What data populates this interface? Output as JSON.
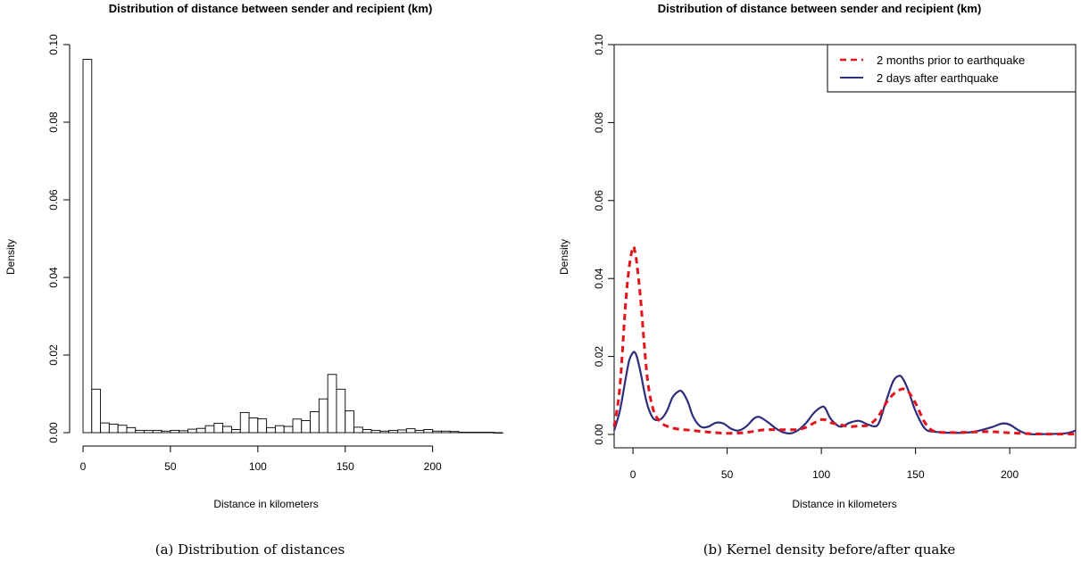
{
  "chart_data": [
    {
      "type": "bar",
      "title": "Distribution of distance between sender and recipient (km)",
      "xlabel": "Distance in kilometers",
      "ylabel": "Density",
      "caption": "(a) Distribution of distances",
      "xlim": [
        0,
        240
      ],
      "ylim": [
        0,
        0.1
      ],
      "x_ticks": [
        "0",
        "50",
        "100",
        "150",
        "200"
      ],
      "y_ticks": [
        "0.00",
        "0.02",
        "0.04",
        "0.06",
        "0.08",
        "0.10"
      ],
      "bin_width": 5,
      "bin_starts": [
        0,
        5,
        10,
        15,
        20,
        25,
        30,
        35,
        40,
        45,
        50,
        55,
        60,
        65,
        70,
        75,
        80,
        85,
        90,
        95,
        100,
        105,
        110,
        115,
        120,
        125,
        130,
        135,
        140,
        145,
        150,
        155,
        160,
        165,
        170,
        175,
        180,
        185,
        190,
        195,
        200,
        205,
        210,
        215,
        220,
        225,
        230,
        235
      ],
      "values": [
        0.0962,
        0.0112,
        0.0025,
        0.0022,
        0.0019,
        0.0013,
        0.0006,
        0.0006,
        0.0006,
        0.0004,
        0.0006,
        0.0005,
        0.0009,
        0.0011,
        0.0018,
        0.0024,
        0.0016,
        0.0008,
        0.0052,
        0.0038,
        0.0036,
        0.0013,
        0.0018,
        0.0016,
        0.0035,
        0.0031,
        0.0054,
        0.0087,
        0.015,
        0.0112,
        0.0056,
        0.0014,
        0.0008,
        0.0006,
        0.0004,
        0.0006,
        0.0007,
        0.001,
        0.0006,
        0.0008,
        0.0004,
        0.0004,
        0.0003,
        0.0001,
        0.0001,
        0.0001,
        0.0001,
        0.0
      ]
    },
    {
      "type": "line",
      "title": "Distribution of distance between sender and recipient (km)",
      "xlabel": "Distance in kilometers",
      "ylabel": "Density",
      "caption": "(b) Kernel density before/after quake",
      "xlim": [
        -10,
        235
      ],
      "ylim": [
        0,
        0.1
      ],
      "x_ticks": [
        "0",
        "50",
        "100",
        "150",
        "200"
      ],
      "y_ticks": [
        "0.00",
        "0.02",
        "0.04",
        "0.06",
        "0.08",
        "0.10"
      ],
      "legend_position": "top-right",
      "series": [
        {
          "name": "2 months prior to earthquake",
          "color": "#e3141b",
          "style": "dashed",
          "x": [
            -10,
            -7,
            -4,
            -2,
            0,
            1,
            2,
            4,
            6,
            8,
            11,
            15,
            20,
            25,
            30,
            40,
            50,
            60,
            70,
            80,
            90,
            100,
            105,
            110,
            115,
            120,
            125,
            130,
            135,
            140,
            145,
            150,
            155,
            160,
            170,
            180,
            190,
            200,
            210,
            220,
            235
          ],
          "y": [
            0.002,
            0.012,
            0.033,
            0.043,
            0.048,
            0.047,
            0.044,
            0.035,
            0.023,
            0.013,
            0.006,
            0.003,
            0.0018,
            0.0013,
            0.0011,
            0.0006,
            0.0003,
            0.0005,
            0.0012,
            0.0012,
            0.0015,
            0.0038,
            0.003,
            0.0025,
            0.002,
            0.0022,
            0.0024,
            0.0045,
            0.0085,
            0.011,
            0.0115,
            0.008,
            0.003,
            0.0008,
            0.0005,
            0.0006,
            0.0007,
            0.0004,
            0.0002,
            0.0001,
            0.0001
          ]
        },
        {
          "name": "2 days after earthquake",
          "color": "#2e2d7c",
          "style": "solid",
          "x": [
            -10,
            -7,
            -4,
            -2,
            0,
            1,
            2,
            4,
            6,
            8,
            11,
            15,
            18,
            21,
            24,
            26,
            29,
            32,
            36,
            40,
            44,
            48,
            52,
            56,
            60,
            64,
            66,
            68,
            72,
            76,
            80,
            84,
            88,
            92,
            96,
            100,
            102,
            105,
            110,
            115,
            120,
            125,
            130,
            134,
            138,
            141,
            143,
            146,
            150,
            155,
            160,
            170,
            180,
            190,
            196,
            200,
            205,
            210,
            220,
            230,
            235
          ],
          "y": [
            0.001,
            0.006,
            0.014,
            0.019,
            0.021,
            0.021,
            0.02,
            0.016,
            0.011,
            0.007,
            0.004,
            0.004,
            0.006,
            0.0095,
            0.011,
            0.011,
            0.0085,
            0.0045,
            0.002,
            0.002,
            0.003,
            0.0028,
            0.0015,
            0.001,
            0.002,
            0.004,
            0.0045,
            0.0043,
            0.003,
            0.0015,
            0.0005,
            0.0003,
            0.0012,
            0.003,
            0.0055,
            0.007,
            0.0068,
            0.004,
            0.002,
            0.003,
            0.0035,
            0.0025,
            0.0025,
            0.008,
            0.0135,
            0.015,
            0.0145,
            0.0115,
            0.006,
            0.0015,
            0.0007,
            0.0004,
            0.0006,
            0.0018,
            0.0028,
            0.0025,
            0.001,
            0.0001,
            0.0001,
            0.0003,
            0.001
          ]
        }
      ]
    }
  ]
}
